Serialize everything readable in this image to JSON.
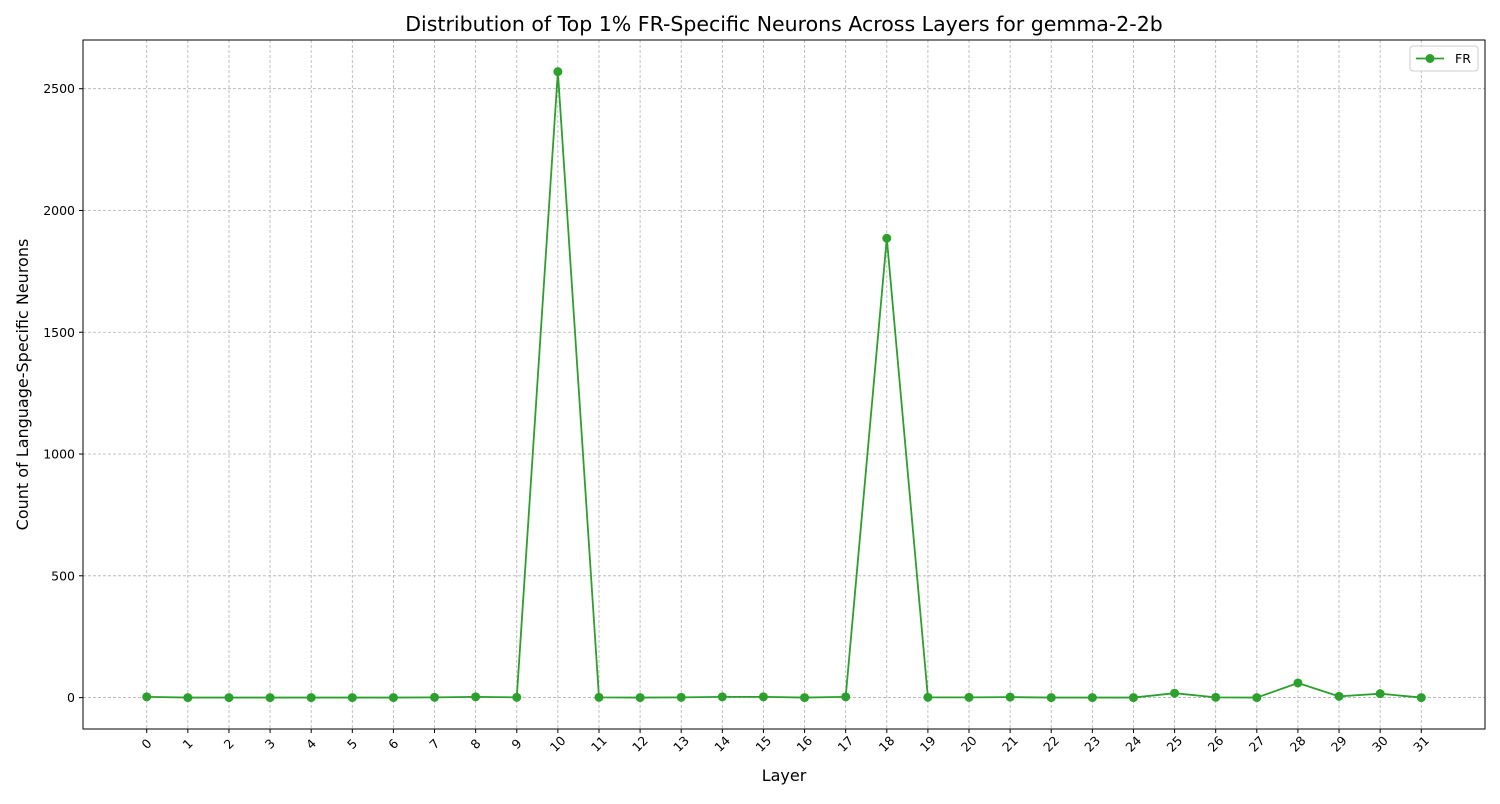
{
  "chart_data": {
    "type": "line",
    "title": "Distribution of Top 1% FR-Specific Neurons Across Layers for gemma-2-2b",
    "xlabel": "Layer",
    "ylabel": "Count of Language-Specific Neurons",
    "x": [
      0,
      1,
      2,
      3,
      4,
      5,
      6,
      7,
      8,
      9,
      10,
      11,
      12,
      13,
      14,
      15,
      16,
      17,
      18,
      19,
      20,
      21,
      22,
      23,
      24,
      25,
      26,
      27,
      28,
      29,
      30,
      31
    ],
    "x_tick_labels": [
      "0",
      "1",
      "2",
      "3",
      "4",
      "5",
      "6",
      "7",
      "8",
      "9",
      "10",
      "11",
      "12",
      "13",
      "14",
      "15",
      "16",
      "17",
      "18",
      "19",
      "20",
      "21",
      "22",
      "23",
      "24",
      "25",
      "26",
      "27",
      "28",
      "29",
      "30",
      "31"
    ],
    "y_ticks": [
      0,
      500,
      1000,
      1500,
      2000,
      2500
    ],
    "y_tick_labels": [
      "0",
      "500",
      "1000",
      "1500",
      "2000",
      "2500"
    ],
    "ylim": [
      -129,
      2700
    ],
    "xlim": [
      -1.55,
      32.55
    ],
    "series": [
      {
        "name": "FR",
        "color": "#2ca02c",
        "marker": "circle",
        "values": [
          3,
          0,
          0,
          0,
          0,
          0,
          0,
          1,
          3,
          1,
          2570,
          1,
          0,
          1,
          3,
          3,
          0,
          3,
          1886,
          1,
          1,
          2,
          0,
          0,
          0,
          18,
          1,
          0,
          60,
          5,
          16,
          0
        ]
      }
    ],
    "grid": true,
    "grid_style": "dashed",
    "legend_position": "top-right",
    "x_tick_rotation": -45
  }
}
